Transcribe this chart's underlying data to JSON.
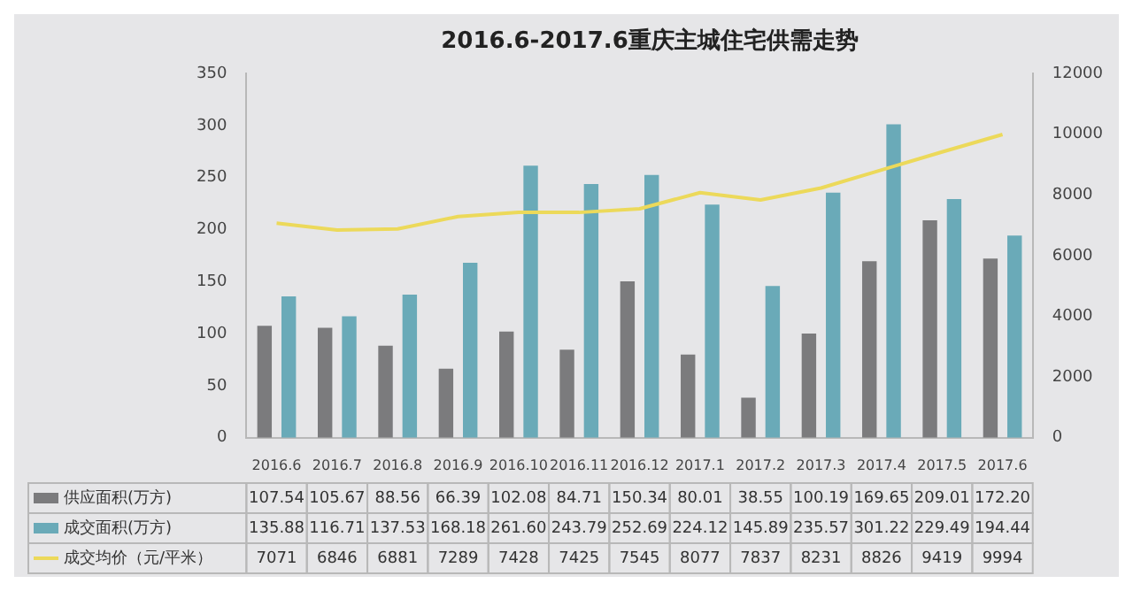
{
  "chart_data": {
    "type": "bar",
    "title": "2016.6-2017.6重庆主城住宅供需走势",
    "categories": [
      "2016.6",
      "2016.7",
      "2016.8",
      "2016.9",
      "2016.10",
      "2016.11",
      "2016.12",
      "2017.1",
      "2017.2",
      "2017.3",
      "2017.4",
      "2017.5",
      "2017.6"
    ],
    "series": [
      {
        "name": "供应面积(万方)",
        "color": "#7b7b7d",
        "values": [
          107.54,
          105.67,
          88.56,
          66.39,
          102.08,
          84.71,
          150.34,
          80.01,
          38.55,
          100.19,
          169.65,
          209.01,
          172.2
        ],
        "value_labels": [
          "107.54",
          "105.67",
          "88.56",
          "66.39",
          "102.08",
          "84.71",
          "150.34",
          "80.01",
          "38.55",
          "100.19",
          "169.65",
          "209.01",
          "172.20"
        ]
      },
      {
        "name": "成交面积(万方)",
        "color": "#6aaab8",
        "values": [
          135.88,
          116.71,
          137.53,
          168.18,
          261.6,
          243.79,
          252.69,
          224.12,
          145.89,
          235.57,
          301.22,
          229.49,
          194.44
        ],
        "value_labels": [
          "135.88",
          "116.71",
          "137.53",
          "168.18",
          "261.60",
          "243.79",
          "252.69",
          "224.12",
          "145.89",
          "235.57",
          "301.22",
          "229.49",
          "194.44"
        ]
      },
      {
        "name": "成交均价（元/平米）",
        "type": "line",
        "axis": "y2",
        "color": "#ecd95a",
        "values": [
          7071,
          6846,
          6881,
          7289,
          7428,
          7425,
          7545,
          8077,
          7837,
          8231,
          8826,
          9419,
          9994
        ],
        "value_labels": [
          "7071",
          "6846",
          "6881",
          "7289",
          "7428",
          "7425",
          "7545",
          "8077",
          "7837",
          "8231",
          "8826",
          "9419",
          "9994"
        ]
      }
    ],
    "ylim": [
      0,
      350
    ],
    "yticks": [
      0,
      50,
      100,
      150,
      200,
      250,
      300,
      350
    ],
    "y2lim": [
      0,
      12000
    ],
    "y2ticks": [
      0,
      2000,
      4000,
      6000,
      8000,
      10000,
      12000
    ],
    "grid": false,
    "legend": "bottom",
    "marker": "none"
  }
}
